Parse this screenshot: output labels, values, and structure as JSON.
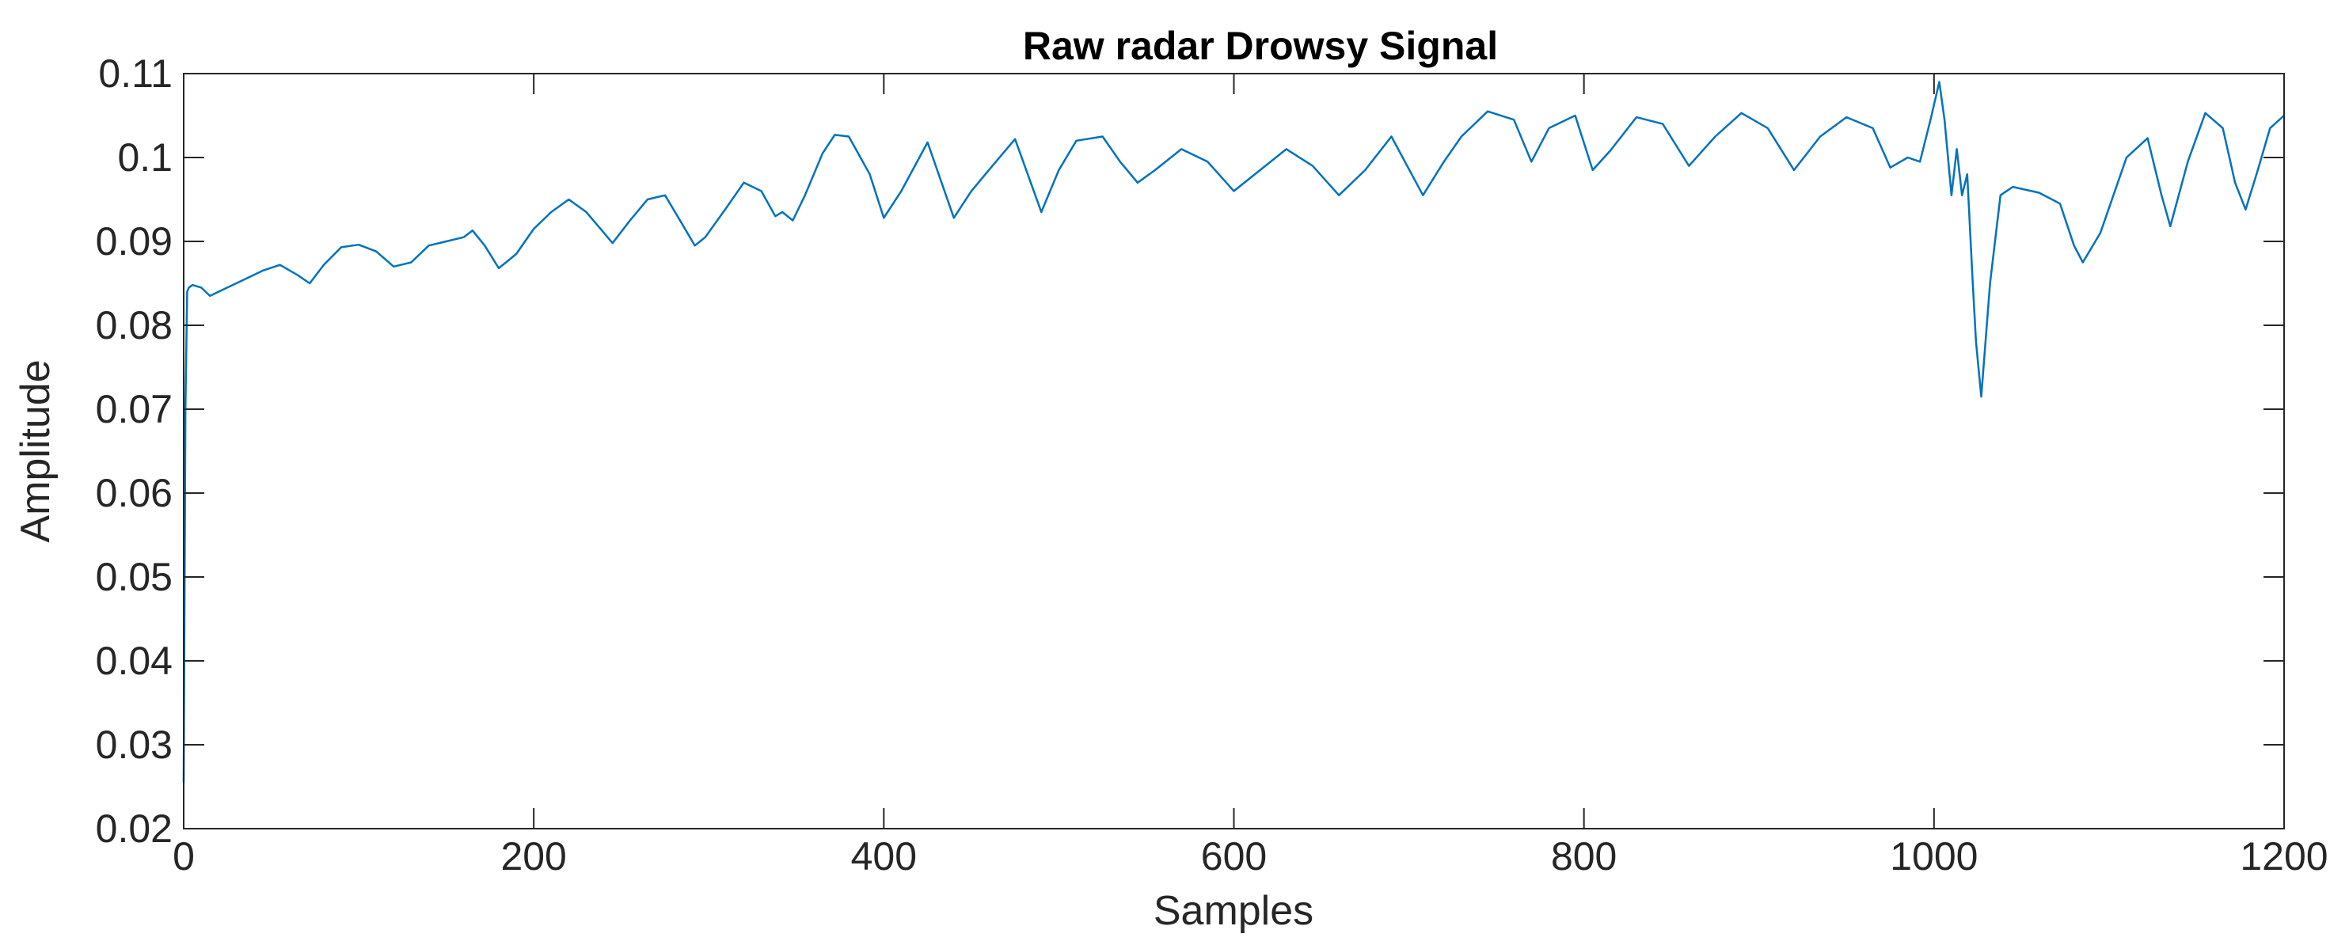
{
  "chart_data": {
    "type": "line",
    "title": "Raw radar Drowsy Signal",
    "xlabel": "Samples",
    "ylabel": "Amplitude",
    "xlim": [
      0,
      1200
    ],
    "ylim": [
      0.02,
      0.11
    ],
    "xticks": [
      "0",
      "200",
      "400",
      "600",
      "800",
      "1000",
      "1200"
    ],
    "yticks": [
      "0.02",
      "0.03",
      "0.04",
      "0.05",
      "0.06",
      "0.07",
      "0.08",
      "0.09",
      "0.1",
      "0.11"
    ],
    "grid": false,
    "box": true,
    "colors": {
      "line": "#0072BD",
      "axes": "#262626"
    },
    "series": [
      {
        "x": [
          0,
          1,
          2,
          3,
          5,
          10,
          15,
          25,
          35,
          45,
          55,
          65,
          72,
          80,
          90,
          100,
          110,
          120,
          130,
          140,
          150,
          160,
          165,
          172,
          180,
          190,
          200,
          210,
          220,
          230,
          245,
          255,
          265,
          275,
          285,
          292,
          298,
          310,
          320,
          330,
          338,
          342,
          348,
          355,
          365,
          372,
          380,
          392,
          400,
          410,
          425,
          440,
          450,
          460,
          475,
          490,
          500,
          510,
          525,
          535,
          545,
          555,
          570,
          585,
          600,
          615,
          630,
          645,
          660,
          675,
          690,
          708,
          720,
          730,
          745,
          760,
          770,
          780,
          795,
          805,
          815,
          830,
          845,
          860,
          875,
          890,
          905,
          920,
          935,
          950,
          965,
          975,
          985,
          992,
          998,
          1003,
          1006,
          1010,
          1013,
          1016,
          1019,
          1022,
          1024,
          1027,
          1032,
          1038,
          1045,
          1060,
          1072,
          1080,
          1085,
          1095,
          1110,
          1122,
          1130,
          1135,
          1145,
          1155,
          1165,
          1172,
          1178,
          1185,
          1192,
          1200
        ],
        "y": [
          0.0255,
          0.07,
          0.084,
          0.0845,
          0.0848,
          0.0845,
          0.0835,
          0.0845,
          0.0855,
          0.0865,
          0.0872,
          0.086,
          0.085,
          0.0872,
          0.0893,
          0.0896,
          0.0888,
          0.087,
          0.0875,
          0.0895,
          0.09,
          0.0905,
          0.0913,
          0.0895,
          0.0868,
          0.0885,
          0.0915,
          0.0935,
          0.095,
          0.0935,
          0.0898,
          0.0925,
          0.095,
          0.0955,
          0.092,
          0.0895,
          0.0905,
          0.094,
          0.097,
          0.096,
          0.093,
          0.0935,
          0.0925,
          0.0955,
          0.1005,
          0.1027,
          0.1025,
          0.098,
          0.0928,
          0.096,
          0.1018,
          0.0928,
          0.096,
          0.0985,
          0.1022,
          0.0935,
          0.0985,
          0.102,
          0.1025,
          0.0995,
          0.097,
          0.0985,
          0.101,
          0.0995,
          0.096,
          0.0985,
          0.101,
          0.099,
          0.0955,
          0.0985,
          0.1025,
          0.0955,
          0.0995,
          0.1025,
          0.1055,
          0.1045,
          0.0995,
          0.1035,
          0.105,
          0.0985,
          0.1008,
          0.1048,
          0.104,
          0.099,
          0.1025,
          0.1053,
          0.1035,
          0.0985,
          0.1025,
          0.1048,
          0.1035,
          0.0988,
          0.1,
          0.0995,
          0.1045,
          0.109,
          0.1045,
          0.0955,
          0.101,
          0.0955,
          0.098,
          0.0855,
          0.078,
          0.0715,
          0.085,
          0.0955,
          0.0965,
          0.0958,
          0.0945,
          0.0895,
          0.0875,
          0.091,
          0.1,
          0.1023,
          0.0955,
          0.0918,
          0.0995,
          0.1053,
          0.1035,
          0.097,
          0.0938,
          0.0985,
          0.1035,
          0.105
        ]
      }
    ]
  }
}
